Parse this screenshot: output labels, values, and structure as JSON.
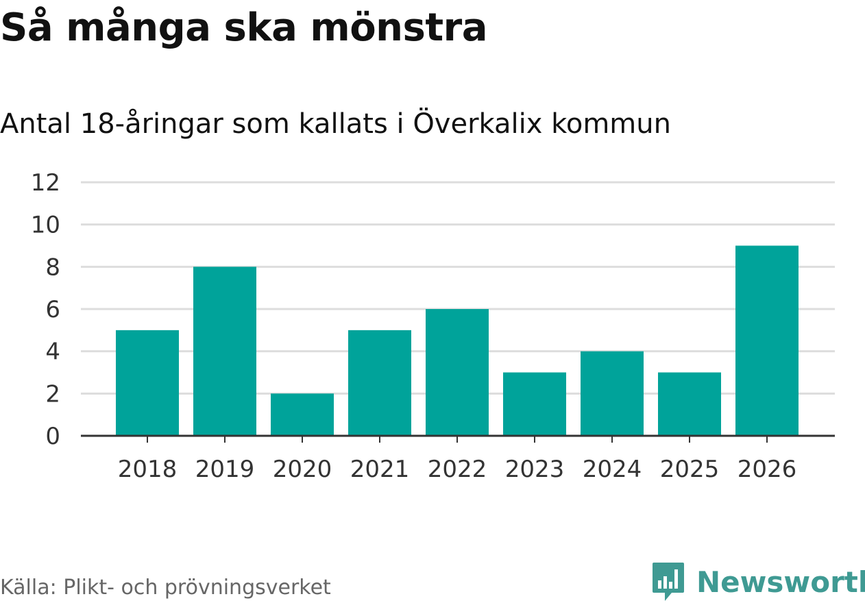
{
  "chart_data": {
    "type": "bar",
    "title": "Så många ska mönstra",
    "subtitle": "Antal 18-åringar som kallats i Överkalix kommun",
    "categories": [
      "2018",
      "2019",
      "2020",
      "2021",
      "2022",
      "2023",
      "2024",
      "2025",
      "2026"
    ],
    "values": [
      5,
      8,
      2,
      5,
      6,
      3,
      4,
      3,
      9
    ],
    "xlabel": "",
    "ylabel": "",
    "ylim": [
      0,
      12
    ],
    "yticks": [
      0,
      2,
      4,
      6,
      8,
      10,
      12
    ],
    "grid": true,
    "bar_color": "#00a39a",
    "grid_color": "#dddddd",
    "axis_color": "#333333"
  },
  "footer": {
    "source": "Källa: Plikt- och prövningsverket",
    "brand": "Newsworthy",
    "brand_icon": "newsworthy-logo-icon",
    "brand_color": "#3f9a93"
  }
}
